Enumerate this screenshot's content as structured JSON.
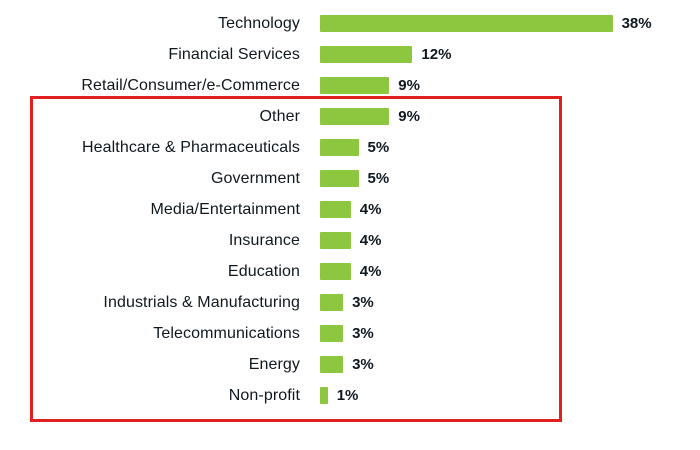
{
  "chart_data": {
    "type": "bar",
    "orientation": "horizontal",
    "title": "",
    "xlabel": "",
    "ylabel": "",
    "xlim": [
      0,
      40
    ],
    "grid": false,
    "legend": false,
    "bar_color": "#8dc63f",
    "text_color": "#101820",
    "categories": [
      "Technology",
      "Financial Services",
      "Retail/Consumer/e-Commerce",
      "Other",
      "Healthcare & Pharmaceuticals",
      "Government",
      "Media/Entertainment",
      "Insurance",
      "Education",
      "Industrials & Manufacturing",
      "Telecommunications",
      "Energy",
      "Non-profit"
    ],
    "values": [
      38,
      12,
      9,
      9,
      5,
      5,
      4,
      4,
      4,
      3,
      3,
      3,
      1
    ],
    "value_labels": [
      "38%",
      "12%",
      "9%",
      "9%",
      "5%",
      "5%",
      "4%",
      "4%",
      "4%",
      "3%",
      "3%",
      "3%",
      "1%"
    ],
    "annotations": [
      {
        "name": "highlight-box",
        "shape": "rectangle-outline",
        "color": "#e02020",
        "from_category": "Other",
        "to_category": "Non-profit"
      }
    ]
  }
}
